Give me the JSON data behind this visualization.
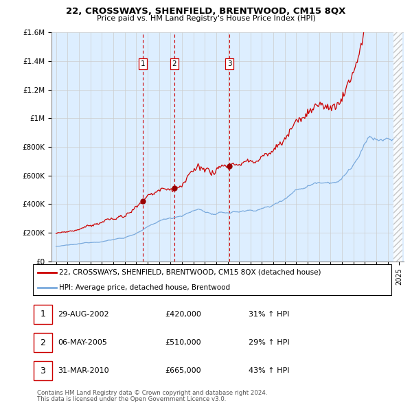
{
  "title": "22, CROSSWAYS, SHENFIELD, BRENTWOOD, CM15 8QX",
  "subtitle": "Price paid vs. HM Land Registry's House Price Index (HPI)",
  "ylim": [
    0,
    1600000
  ],
  "yticks": [
    0,
    200000,
    400000,
    600000,
    800000,
    1000000,
    1200000,
    1400000,
    1600000
  ],
  "ytick_labels": [
    "£0",
    "£200K",
    "£400K",
    "£600K",
    "£800K",
    "£1M",
    "£1.2M",
    "£1.4M",
    "£1.6M"
  ],
  "sale_color": "#cc0000",
  "hpi_color": "#7aaadd",
  "vline_color": "#cc0000",
  "bg_color": "#ddeeff",
  "transactions": [
    {
      "date": "2002-08-29",
      "price": 420000,
      "label": "1"
    },
    {
      "date": "2005-05-06",
      "price": 510000,
      "label": "2"
    },
    {
      "date": "2010-03-31",
      "price": 665000,
      "label": "3"
    }
  ],
  "transaction_display": [
    {
      "num": "1",
      "date": "29-AUG-2002",
      "price": "£420,000",
      "pct": "31% ↑ HPI"
    },
    {
      "num": "2",
      "date": "06-MAY-2005",
      "price": "£510,000",
      "pct": "29% ↑ HPI"
    },
    {
      "num": "3",
      "date": "31-MAR-2010",
      "price": "£665,000",
      "pct": "43% ↑ HPI"
    }
  ],
  "legend_line1": "22, CROSSWAYS, SHENFIELD, BRENTWOOD, CM15 8QX (detached house)",
  "legend_line2": "HPI: Average price, detached house, Brentwood",
  "footnote1": "Contains HM Land Registry data © Crown copyright and database right 2024.",
  "footnote2": "This data is licensed under the Open Government Licence v3.0.",
  "grid_color": "#cccccc",
  "hatch_color": "#bbbbbb",
  "sale_dot_color": "#990000"
}
